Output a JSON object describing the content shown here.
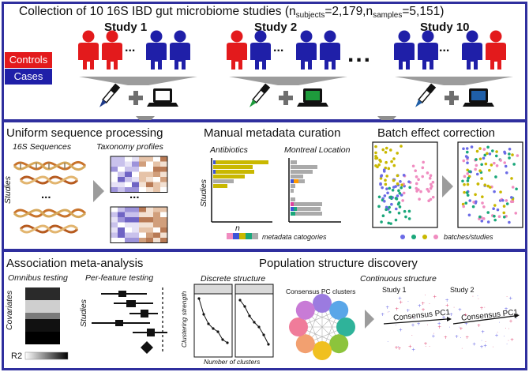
{
  "panel1": {
    "title_prefix": "Collection of 10 16S IBD gut microbiome studies (n",
    "sub_subjects": "subjects",
    "eq_subjects": "=2,179,n",
    "sub_samples": "samples",
    "eq_samples": "=5,151)",
    "studies": [
      "Study 1",
      "Study 2",
      "Study 10"
    ],
    "legend": {
      "controls": "Controls",
      "cases": "Cases"
    },
    "ellipsis": "...",
    "colors": {
      "controls": "#e31a1c",
      "cases": "#1f1fa8",
      "frame": "#2f2f9e",
      "pipette1": "#1e3a8a",
      "pipette2": "#1e9b3c",
      "pipette3": "#1f5fa8"
    }
  },
  "panel2": {
    "sections": {
      "processing": "Uniform sequence processing",
      "curation": "Manual metadata curation",
      "batch": "Batch effect correction"
    },
    "labels": {
      "sequences": "16S Sequences",
      "taxonomy": "Taxonomy profiles",
      "studies": "Studies",
      "antibiotics": "Antibiotics",
      "montreal": "Montreal Location",
      "n": "n",
      "metadata_categories": "metadata catogories",
      "batches": "batches/studies",
      "dots": "..."
    }
  },
  "panel3": {
    "sections": {
      "association": "Association meta-analysis",
      "population": "Population structure discovery"
    },
    "labels": {
      "omnibus": "Omnibus testing",
      "perfeature": "Per-feature testing",
      "covariates": "Covariates",
      "studies": "Studies",
      "r2": "R2",
      "stars_top": "**",
      "stars_mid": "***",
      "stars_bot": "***",
      "discrete": "Discrete structure",
      "continuous": "Continuous structure",
      "study1": "Study 1",
      "study2": "Study 2",
      "clustering_strength": "Clustering strength",
      "num_clusters": "Number of clusters",
      "consensus_clusters": "Consensus PC clusters",
      "consensus_pc1": "Consensus PC1"
    }
  }
}
